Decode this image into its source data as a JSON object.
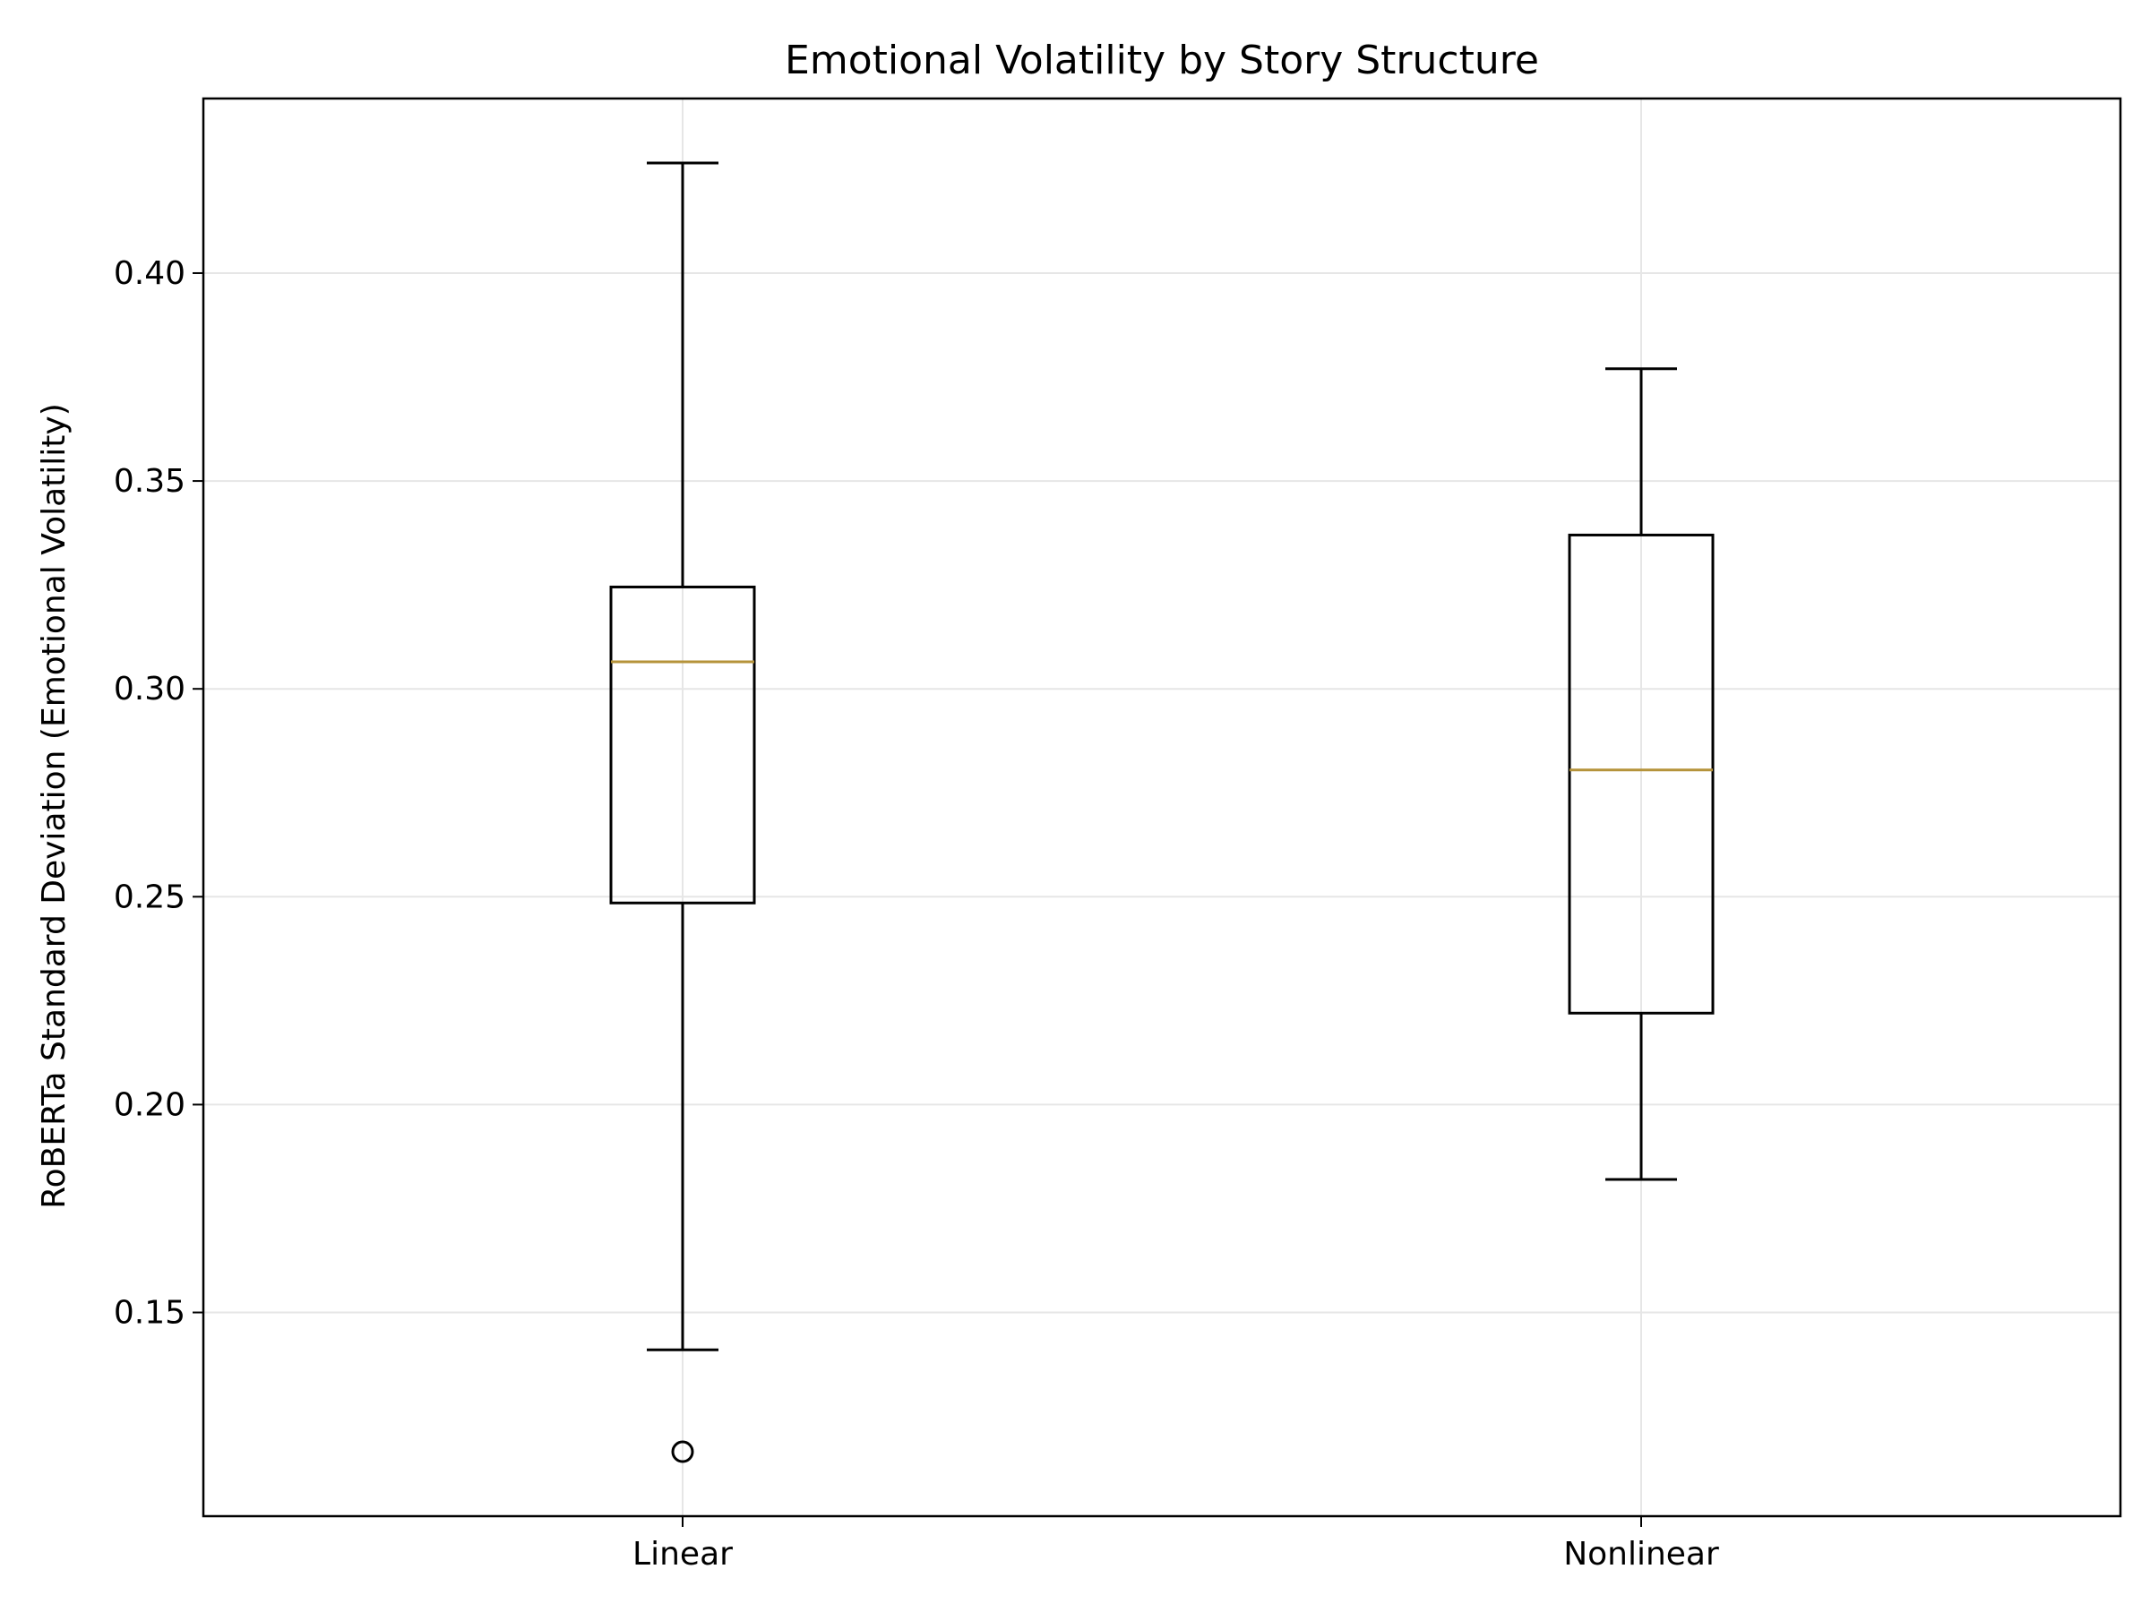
{
  "chart_data": {
    "type": "box",
    "title": "Emotional Volatility by Story Structure",
    "xlabel": "",
    "ylabel": "RoBERTa Standard Deviation (Emotional Volatility)",
    "categories": [
      "Linear",
      "Nonlinear"
    ],
    "boxes": [
      {
        "category": "Linear",
        "whisker_low": 0.141,
        "q1": 0.2485,
        "median": 0.3065,
        "q3": 0.3245,
        "whisker_high": 0.4265,
        "outliers": [
          0.1165
        ]
      },
      {
        "category": "Nonlinear",
        "whisker_low": 0.182,
        "q1": 0.222,
        "median": 0.2805,
        "q3": 0.337,
        "whisker_high": 0.377,
        "outliers": []
      }
    ],
    "ylim": [
      0.101,
      0.442
    ],
    "yticks": [
      "0.15",
      "0.20",
      "0.25",
      "0.30",
      "0.35",
      "0.40"
    ],
    "grid": true,
    "colors": {
      "box": "#000000",
      "median": "#b5933a",
      "grid": "#e6e6e6"
    }
  }
}
